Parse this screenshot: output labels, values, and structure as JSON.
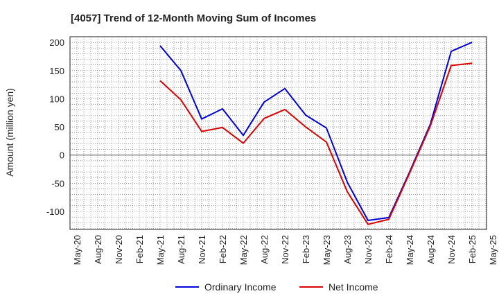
{
  "chart_data": {
    "type": "line",
    "title": "[4057]  Trend of 12-Month Moving Sum of Incomes",
    "xlabel": "",
    "ylabel": "Amount (million yen)",
    "ylim": [
      -132,
      210
    ],
    "yticks": [
      200,
      150,
      100,
      50,
      0,
      -50,
      -100
    ],
    "x": [
      "May-20",
      "Aug-20",
      "Nov-20",
      "Feb-21",
      "May-21",
      "Aug-21",
      "Nov-21",
      "Feb-22",
      "May-22",
      "Aug-22",
      "Nov-22",
      "Feb-23",
      "May-23",
      "Aug-23",
      "Nov-23",
      "Feb-24",
      "May-24",
      "Aug-24",
      "Nov-24",
      "Feb-25",
      "May-25"
    ],
    "series": [
      {
        "name": "Ordinary Income",
        "color": "#0000dd",
        "values": [
          null,
          null,
          null,
          null,
          194,
          150,
          64,
          82,
          35,
          94,
          118,
          71,
          48,
          -48,
          -116,
          -111,
          -30,
          55,
          184,
          200,
          null
        ]
      },
      {
        "name": "Net Income",
        "color": "#dd0000",
        "values": [
          null,
          null,
          null,
          null,
          132,
          98,
          42,
          49,
          21,
          65,
          81,
          50,
          23,
          -65,
          -123,
          -114,
          -32,
          52,
          159,
          163,
          null
        ]
      }
    ],
    "grid": true,
    "legend": "bottom"
  }
}
